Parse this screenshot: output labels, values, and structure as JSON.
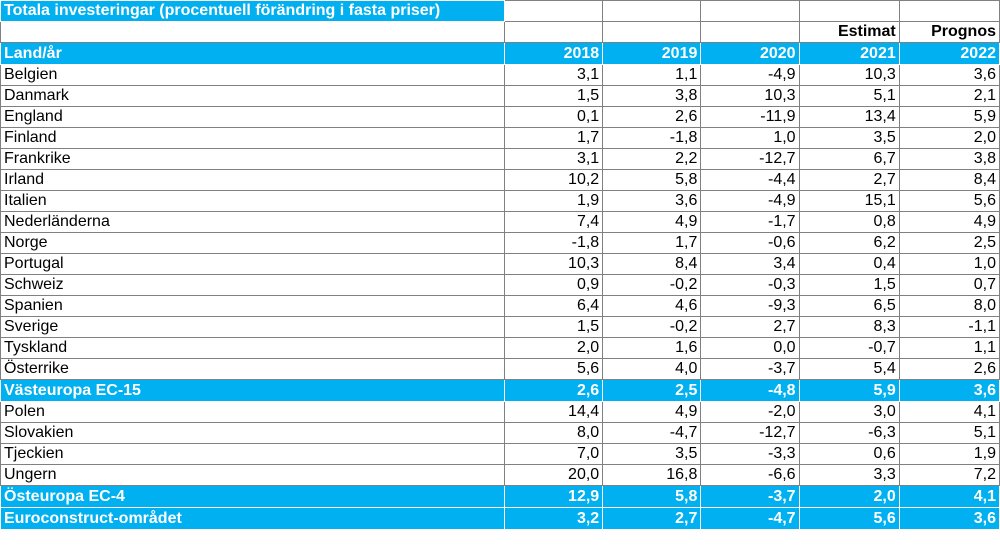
{
  "title": "Totala investeringar (procentuell förändring i fasta priser)",
  "subheader": {
    "estimate": "Estimat",
    "forecast": "Prognos"
  },
  "header": {
    "label": "Land/år",
    "years": [
      "2018",
      "2019",
      "2020",
      "2021",
      "2022"
    ]
  },
  "rows": [
    {
      "name": "Belgien",
      "values": [
        "3,1",
        "1,1",
        "-4,9",
        "10,3",
        "3,6"
      ],
      "total": false
    },
    {
      "name": "Danmark",
      "values": [
        "1,5",
        "3,8",
        "10,3",
        "5,1",
        "2,1"
      ],
      "total": false
    },
    {
      "name": "England",
      "values": [
        "0,1",
        "2,6",
        "-11,9",
        "13,4",
        "5,9"
      ],
      "total": false
    },
    {
      "name": "Finland",
      "values": [
        "1,7",
        "-1,8",
        "1,0",
        "3,5",
        "2,0"
      ],
      "total": false
    },
    {
      "name": "Frankrike",
      "values": [
        "3,1",
        "2,2",
        "-12,7",
        "6,7",
        "3,8"
      ],
      "total": false
    },
    {
      "name": "Irland",
      "values": [
        "10,2",
        "5,8",
        "-4,4",
        "2,7",
        "8,4"
      ],
      "total": false
    },
    {
      "name": "Italien",
      "values": [
        "1,9",
        "3,6",
        "-4,9",
        "15,1",
        "5,6"
      ],
      "total": false
    },
    {
      "name": "Nederländerna",
      "values": [
        "7,4",
        "4,9",
        "-1,7",
        "0,8",
        "4,9"
      ],
      "total": false
    },
    {
      "name": "Norge",
      "values": [
        "-1,8",
        "1,7",
        "-0,6",
        "6,2",
        "2,5"
      ],
      "total": false
    },
    {
      "name": "Portugal",
      "values": [
        "10,3",
        "8,4",
        "3,4",
        "0,4",
        "1,0"
      ],
      "total": false
    },
    {
      "name": "Schweiz",
      "values": [
        "0,9",
        "-0,2",
        "-0,3",
        "1,5",
        "0,7"
      ],
      "total": false
    },
    {
      "name": "Spanien",
      "values": [
        "6,4",
        "4,6",
        "-9,3",
        "6,5",
        "8,0"
      ],
      "total": false
    },
    {
      "name": "Sverige",
      "values": [
        "1,5",
        "-0,2",
        "2,7",
        "8,3",
        "-1,1"
      ],
      "total": false
    },
    {
      "name": "Tyskland",
      "values": [
        "2,0",
        "1,6",
        "0,0",
        "-0,7",
        "1,1"
      ],
      "total": false
    },
    {
      "name": "Österrike",
      "values": [
        "5,6",
        "4,0",
        "-3,7",
        "5,4",
        "2,6"
      ],
      "total": false
    },
    {
      "name": "Västeuropa EC-15",
      "values": [
        "2,6",
        "2,5",
        "-4,8",
        "5,9",
        "3,6"
      ],
      "total": true
    },
    {
      "name": "Polen",
      "values": [
        "14,4",
        "4,9",
        "-2,0",
        "3,0",
        "4,1"
      ],
      "total": false
    },
    {
      "name": "Slovakien",
      "values": [
        "8,0",
        "-4,7",
        "-12,7",
        "-6,3",
        "5,1"
      ],
      "total": false
    },
    {
      "name": "Tjeckien",
      "values": [
        "7,0",
        "3,5",
        "-3,3",
        "0,6",
        "1,9"
      ],
      "total": false
    },
    {
      "name": "Ungern",
      "values": [
        "20,0",
        "16,8",
        "-6,6",
        "3,3",
        "7,2"
      ],
      "total": false
    },
    {
      "name": "Östeuropa EC-4",
      "values": [
        "12,9",
        "5,8",
        "-3,7",
        "2,0",
        "4,1"
      ],
      "total": true
    },
    {
      "name": "Euroconstruct-området",
      "values": [
        "3,2",
        "2,7",
        "-4,7",
        "5,6",
        "3,6"
      ],
      "total": true
    }
  ],
  "colors": {
    "accent": "#00b0f0",
    "grid": "#808080"
  }
}
